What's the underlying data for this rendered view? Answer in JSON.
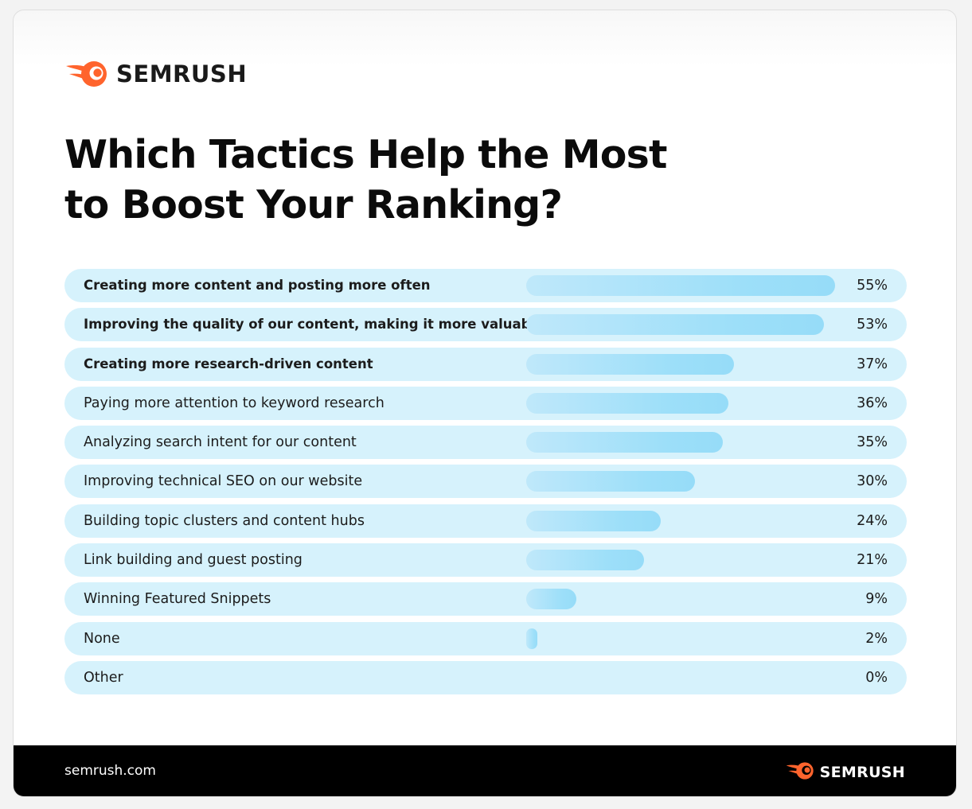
{
  "brand": {
    "name": "SEMRUSH",
    "logo_icon": "semrush-fireball-icon",
    "accent": "#ff642d"
  },
  "title_line1": "Which Tactics Help the Most",
  "title_line2": "to Boost Your Ranking?",
  "footer": {
    "url": "semrush.com",
    "brand_name": "SEMRUSH"
  },
  "colors": {
    "row_bg": "#d6f2fc",
    "bar": "#9ddff9",
    "footer_bg": "#000000"
  },
  "chart_data": {
    "type": "bar",
    "orientation": "horizontal",
    "title": "Which Tactics Help the Most to Boost Your Ranking?",
    "categories": [
      "Creating more content and posting  more often",
      "Improving the quality of our content, making it more valuable",
      "Creating more research-driven content",
      "Paying more attention to keyword research",
      "Analyzing search intent for our content",
      "Improving technical SEO on our website",
      "Building topic clusters and content hubs",
      "Link building and guest posting",
      "Winning Featured Snippets",
      "None",
      "Other"
    ],
    "values": [
      55,
      53,
      37,
      36,
      35,
      30,
      24,
      21,
      9,
      2,
      0
    ],
    "value_labels": [
      "55%",
      "53%",
      "37%",
      "36%",
      "35%",
      "30%",
      "24%",
      "21%",
      "9%",
      "2%",
      "0%"
    ],
    "unit": "%",
    "bold_rows": [
      0,
      1,
      2
    ],
    "xlim": [
      0,
      55
    ]
  }
}
